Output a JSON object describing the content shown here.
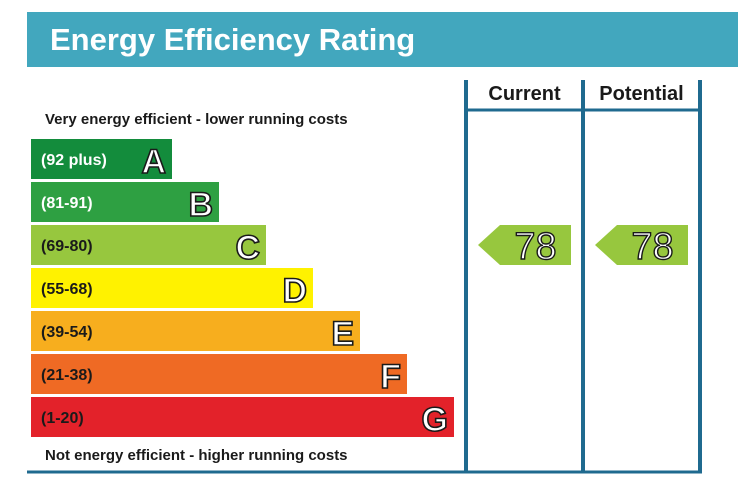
{
  "chart_data": {
    "type": "bar",
    "title": "Energy Efficiency Rating",
    "top_note": "Very energy efficient - lower running costs",
    "bottom_note": "Not energy efficient - higher running costs",
    "columns": [
      "Current",
      "Potential"
    ],
    "bands": [
      {
        "range": "(92 plus)",
        "letter": "A",
        "color": "#138c3c",
        "text_color": "#ffffff"
      },
      {
        "range": "(81-91)",
        "letter": "B",
        "color": "#2ea042",
        "text_color": "#ffffff"
      },
      {
        "range": "(69-80)",
        "letter": "C",
        "color": "#97c73e",
        "text_color": "#1a1a1a"
      },
      {
        "range": "(55-68)",
        "letter": "D",
        "color": "#fff200",
        "text_color": "#1a1a1a"
      },
      {
        "range": "(39-54)",
        "letter": "E",
        "color": "#f7ae1e",
        "text_color": "#1a1a1a"
      },
      {
        "range": "(21-38)",
        "letter": "F",
        "color": "#ef6a24",
        "text_color": "#1a1a1a"
      },
      {
        "range": "(1-20)",
        "letter": "G",
        "color": "#e3222a",
        "text_color": "#1a1a1a"
      }
    ],
    "ratings": [
      {
        "column": "Current",
        "value": 78,
        "band": "C"
      },
      {
        "column": "Potential",
        "value": 78,
        "band": "C"
      }
    ]
  },
  "colors": {
    "header_bg": "#42a7be",
    "frame": "#1f6a8f"
  }
}
